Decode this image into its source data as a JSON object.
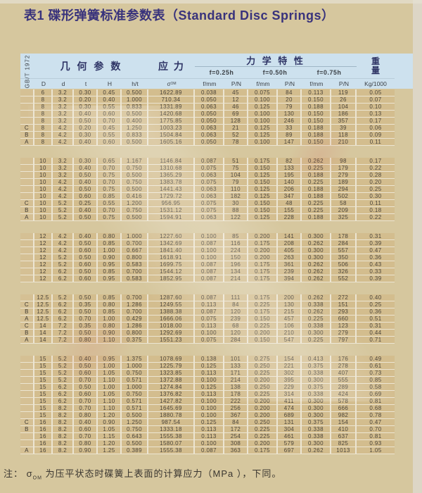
{
  "page": {
    "title": "表1 碟形弹簧标准参数表（Standard Disc Springs）",
    "footnote": {
      "prefix": "注： ",
      "sigma": "σ",
      "sigma_sub": "OM",
      "text": " 为压平状态时碟簧上表面的计算应力（MPa ），下同。"
    }
  },
  "table": {
    "standard_label": "GB/T 1972",
    "header": {
      "geometry": "几 何 参 数",
      "stress": "应 力",
      "mechanical": "力 学 特 性",
      "weight_line1": "重",
      "weight_line2": "量",
      "deflections": [
        "f=0.25h",
        "f=0.50h",
        "f=0.75h"
      ],
      "columns": [
        "D",
        "d",
        "t",
        "H",
        "h/t"
      ],
      "sigma_main": "σ",
      "sigma_sub": "OM",
      "sub_columns": [
        "f/mm",
        "P/N"
      ],
      "weight_unit": "Kg/1000"
    },
    "groups": [
      {
        "rows": [
          [
            "",
            "6",
            "3.2",
            "0.30",
            "0.45",
            "0.500",
            "1622.89",
            "0.038",
            "45",
            "0.075",
            "84",
            "0.113",
            "119",
            "0.05"
          ],
          [
            "",
            "8",
            "3.2",
            "0.20",
            "0.40",
            "1.000",
            "710.34",
            "0.050",
            "12",
            "0.100",
            "20",
            "0.150",
            "26",
            "0.07"
          ],
          [
            "",
            "8",
            "3.2",
            "0.30",
            "0.55",
            "0.833",
            "1331.89",
            "0.063",
            "46",
            "0.125",
            "79",
            "0.188",
            "104",
            "0.10"
          ],
          [
            "",
            "8",
            "3.2",
            "0.40",
            "0.60",
            "0.500",
            "1420.68",
            "0.050",
            "69",
            "0.100",
            "130",
            "0.150",
            "186",
            "0.13"
          ],
          [
            "",
            "8",
            "3.2",
            "0.50",
            "0.70",
            "0.400",
            "1775.85",
            "0.050",
            "128",
            "0.100",
            "246",
            "0.150",
            "357",
            "0.17"
          ],
          [
            "C",
            "8",
            "4.2",
            "0.20",
            "0.45",
            "1.250",
            "1003.23",
            "0.063",
            "21",
            "0.125",
            "33",
            "0.188",
            "39",
            "0.06"
          ],
          [
            "B",
            "8",
            "4.2",
            "0.30",
            "0.55",
            "0.833",
            "1504.84",
            "0.063",
            "52",
            "0.125",
            "89",
            "0.188",
            "118",
            "0.09"
          ],
          [
            "A",
            "8",
            "4.2",
            "0.40",
            "0.60",
            "0.500",
            "1605.16",
            "0.050",
            "78",
            "0.100",
            "147",
            "0.150",
            "210",
            "0.11"
          ]
        ]
      },
      {
        "rows": [
          [
            "",
            "10",
            "3.2",
            "0.30",
            "0.65",
            "1.167",
            "1146.84",
            "0.087",
            "51",
            "0.175",
            "82",
            "0.262",
            "98",
            "0.17"
          ],
          [
            "",
            "10",
            "3.2",
            "0.40",
            "0.70",
            "0.750",
            "1310.68",
            "0.075",
            "75",
            "0.150",
            "133",
            "0.225",
            "179",
            "0.22"
          ],
          [
            "",
            "10",
            "3.2",
            "0.50",
            "0.75",
            "0.500",
            "1365.29",
            "0.063",
            "104",
            "0.125",
            "195",
            "0.188",
            "279",
            "0.28"
          ],
          [
            "",
            "10",
            "4.2",
            "0.40",
            "0.70",
            "0.750",
            "1383.78",
            "0.075",
            "79",
            "0.150",
            "140",
            "0.225",
            "189",
            "0.20"
          ],
          [
            "",
            "10",
            "4.2",
            "0.50",
            "0.75",
            "0.500",
            "1441.43",
            "0.063",
            "110",
            "0.125",
            "206",
            "0.188",
            "294",
            "0.25"
          ],
          [
            "",
            "10",
            "4.2",
            "0.60",
            "0.85",
            "0.416",
            "1729.72",
            "0.063",
            "182",
            "0.125",
            "347",
            "0.188",
            "502",
            "0.30"
          ],
          [
            "C",
            "10",
            "5.2",
            "0.25",
            "0.55",
            "1.200",
            "956.95",
            "0.075",
            "30",
            "0.150",
            "48",
            "0.225",
            "58",
            "0.11"
          ],
          [
            "B",
            "10",
            "5.2",
            "0.40",
            "0.70",
            "0.750",
            "1531.12",
            "0.075",
            "88",
            "0.150",
            "155",
            "0.225",
            "209",
            "0.18"
          ],
          [
            "A",
            "10",
            "5.2",
            "0.50",
            "0.75",
            "0.500",
            "1594.91",
            "0.063",
            "122",
            "0.125",
            "228",
            "0.188",
            "325",
            "0.22"
          ]
        ]
      },
      {
        "rows": [
          [
            "",
            "12",
            "4.2",
            "0.40",
            "0.80",
            "1.000",
            "1227.60",
            "0.100",
            "85",
            "0.200",
            "141",
            "0.300",
            "178",
            "0.31"
          ],
          [
            "",
            "12",
            "4.2",
            "0.50",
            "0.85",
            "0.700",
            "1342.69",
            "0.087",
            "116",
            "0.175",
            "208",
            "0.262",
            "284",
            "0.39"
          ],
          [
            "",
            "12",
            "4.2",
            "0.60",
            "1.00",
            "0.667",
            "1841.40",
            "0.100",
            "224",
            "0.200",
            "405",
            "0.300",
            "557",
            "0.47"
          ],
          [
            "",
            "12",
            "5.2",
            "0.50",
            "0.90",
            "0.800",
            "1618.91",
            "0.100",
            "150",
            "0.200",
            "263",
            "0.300",
            "350",
            "0.36"
          ],
          [
            "",
            "12",
            "5.2",
            "0.60",
            "0.95",
            "0.583",
            "1699.75",
            "0.087",
            "196",
            "0.175",
            "361",
            "0.262",
            "506",
            "0.43"
          ],
          [
            "",
            "12",
            "6.2",
            "0.50",
            "0.85",
            "0.700",
            "1544.12",
            "0.087",
            "134",
            "0.175",
            "239",
            "0.262",
            "326",
            "0.33"
          ],
          [
            "",
            "12",
            "6.2",
            "0.60",
            "0.95",
            "0.583",
            "1852.95",
            "0.087",
            "214",
            "0.175",
            "394",
            "0.262",
            "552",
            "0.39"
          ]
        ]
      },
      {
        "rows": [
          [
            "",
            "12.5",
            "5.2",
            "0.50",
            "0.85",
            "0.700",
            "1287.60",
            "0.087",
            "111",
            "0.175",
            "200",
            "0.262",
            "272",
            "0.40"
          ],
          [
            "C",
            "12.5",
            "6.2",
            "0.35",
            "0.80",
            "1.286",
            "1249.55",
            "0.113",
            "84",
            "0.225",
            "130",
            "0.338",
            "151",
            "0.25"
          ],
          [
            "B",
            "12.5",
            "6.2",
            "0.50",
            "0.85",
            "0.700",
            "1388.38",
            "0.087",
            "120",
            "0.175",
            "215",
            "0.262",
            "293",
            "0.36"
          ],
          [
            "A",
            "12.5",
            "6.2",
            "0.70",
            "1.00",
            "0.429",
            "1666.06",
            "0.075",
            "239",
            "0.150",
            "457",
            "0.225",
            "660",
            "0.51"
          ],
          [
            "C",
            "14",
            "7.2",
            "0.35",
            "0.80",
            "1.286",
            "1018.00",
            "0.113",
            "68",
            "0.225",
            "106",
            "0.338",
            "123",
            "0.31"
          ],
          [
            "B",
            "14",
            "7.2",
            "0.50",
            "0.90",
            "0.800",
            "1292.69",
            "0.100",
            "120",
            "0.200",
            "210",
            "0.300",
            "279",
            "0.44"
          ],
          [
            "A",
            "14",
            "7.2",
            "0.80",
            "1.10",
            "0.375",
            "1551.23",
            "0.075",
            "284",
            "0.150",
            "547",
            "0.225",
            "797",
            "0.71"
          ]
        ]
      },
      {
        "rows": [
          [
            "",
            "15",
            "5.2",
            "0.40",
            "0.95",
            "1.375",
            "1078.69",
            "0.138",
            "101",
            "0.275",
            "154",
            "0.413",
            "176",
            "0.49"
          ],
          [
            "",
            "15",
            "5.2",
            "0.50",
            "1.00",
            "1.000",
            "1225.79",
            "0.125",
            "133",
            "0.250",
            "221",
            "0.375",
            "278",
            "0.61"
          ],
          [
            "",
            "15",
            "5.2",
            "0.60",
            "1.05",
            "0.750",
            "1323.85",
            "0.113",
            "171",
            "0.225",
            "302",
            "0.338",
            "407",
            "0.73"
          ],
          [
            "",
            "15",
            "5.2",
            "0.70",
            "1.10",
            "0.571",
            "1372.88",
            "0.100",
            "214",
            "0.200",
            "395",
            "0.300",
            "555",
            "0.85"
          ],
          [
            "",
            "15",
            "6.2",
            "0.50",
            "1.00",
            "1.000",
            "1274.84",
            "0.125",
            "138",
            "0.250",
            "229",
            "0.375",
            "289",
            "0.58"
          ],
          [
            "",
            "15",
            "6.2",
            "0.60",
            "1.05",
            "0.750",
            "1376.82",
            "0.113",
            "178",
            "0.225",
            "314",
            "0.338",
            "424",
            "0.69"
          ],
          [
            "",
            "15",
            "6.2",
            "0.70",
            "1.10",
            "0.571",
            "1427.82",
            "0.100",
            "222",
            "0.200",
            "411",
            "0.300",
            "578",
            "0.81"
          ],
          [
            "",
            "15",
            "8.2",
            "0.70",
            "1.10",
            "0.571",
            "1645.69",
            "0.100",
            "256",
            "0.200",
            "474",
            "0.300",
            "666",
            "0.68"
          ],
          [
            "",
            "15",
            "8.2",
            "0.80",
            "1.20",
            "0.500",
            "1880.78",
            "0.100",
            "367",
            "0.200",
            "689",
            "0.300",
            "982",
            "0.78"
          ],
          [
            "C",
            "16",
            "8.2",
            "0.40",
            "0.90",
            "1.250",
            "987.54",
            "0.125",
            "84",
            "0.250",
            "131",
            "0.375",
            "154",
            "0.47"
          ],
          [
            "B",
            "16",
            "8.2",
            "0.60",
            "1.05",
            "0.750",
            "1333.18",
            "0.113",
            "172",
            "0.225",
            "304",
            "0.338",
            "410",
            "0.70"
          ],
          [
            "",
            "16",
            "8.2",
            "0.70",
            "1.15",
            "0.643",
            "1555.38",
            "0.113",
            "254",
            "0.225",
            "461",
            "0.338",
            "637",
            "0.81"
          ],
          [
            "",
            "16",
            "8.2",
            "0.80",
            "1.20",
            "0.500",
            "1580.07",
            "0.100",
            "308",
            "0.200",
            "579",
            "0.300",
            "825",
            "0.93"
          ],
          [
            "A",
            "16",
            "8.2",
            "0.90",
            "1.25",
            "0.389",
            "1555.38",
            "0.087",
            "363",
            "0.175",
            "697",
            "0.262",
            "1013",
            "1.05"
          ]
        ]
      }
    ]
  }
}
